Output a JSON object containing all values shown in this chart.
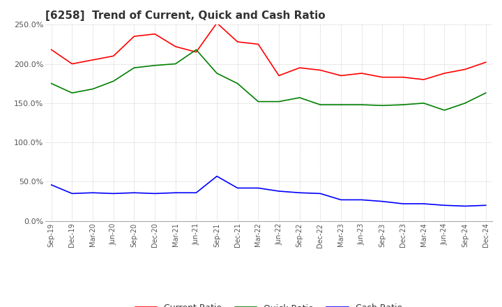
{
  "title": "[6258]  Trend of Current, Quick and Cash Ratio",
  "x_labels": [
    "Sep-19",
    "Dec-19",
    "Mar-20",
    "Jun-20",
    "Sep-20",
    "Dec-20",
    "Mar-21",
    "Jun-21",
    "Sep-21",
    "Dec-21",
    "Mar-22",
    "Jun-22",
    "Sep-22",
    "Dec-22",
    "Mar-23",
    "Jun-23",
    "Sep-23",
    "Dec-23",
    "Mar-24",
    "Jun-24",
    "Sep-24",
    "Dec-24"
  ],
  "current_ratio": [
    218,
    200,
    205,
    210,
    235,
    238,
    222,
    215,
    252,
    228,
    225,
    185,
    195,
    192,
    185,
    188,
    183,
    183,
    180,
    188,
    193,
    202
  ],
  "quick_ratio": [
    175,
    163,
    168,
    178,
    195,
    198,
    200,
    218,
    188,
    175,
    152,
    152,
    157,
    148,
    148,
    148,
    147,
    148,
    150,
    141,
    150,
    163
  ],
  "cash_ratio": [
    46,
    35,
    36,
    35,
    36,
    35,
    36,
    36,
    57,
    42,
    42,
    38,
    36,
    35,
    27,
    27,
    25,
    22,
    22,
    20,
    19,
    20
  ],
  "current_color": "#ff0000",
  "quick_color": "#008000",
  "cash_color": "#0000ff",
  "ylim": [
    0,
    250
  ],
  "yticks": [
    0,
    50,
    100,
    150,
    200,
    250
  ],
  "background_color": "#ffffff",
  "grid_color": "#bbbbbb"
}
